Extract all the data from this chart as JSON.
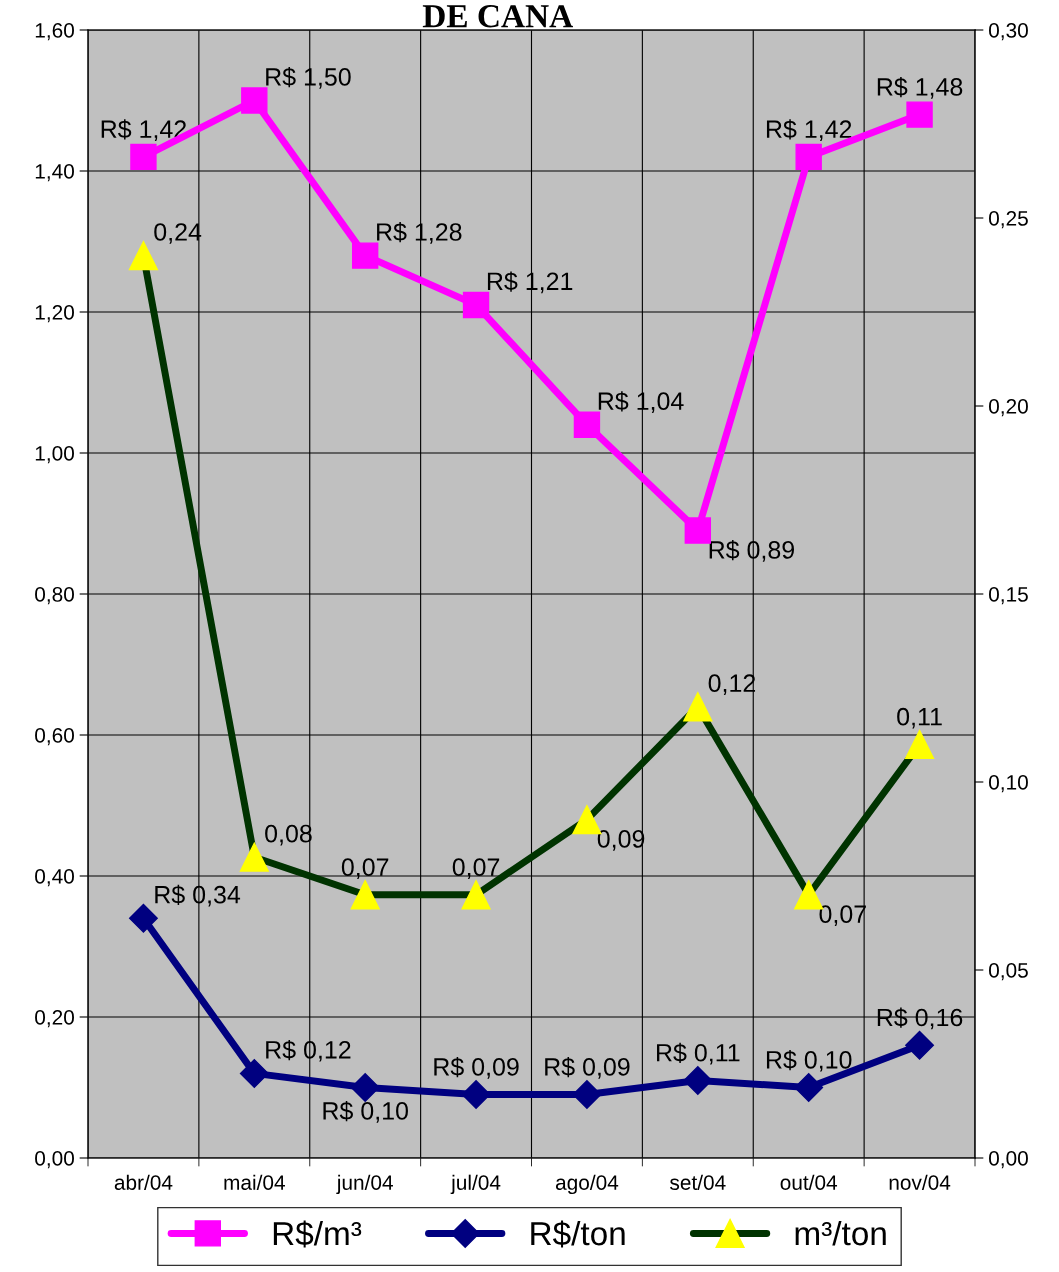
{
  "chart_data": {
    "type": "line",
    "title": "DE CANA",
    "categories": [
      "abr/04",
      "mai/04",
      "jun/04",
      "jul/04",
      "ago/04",
      "set/04",
      "out/04",
      "nov/04"
    ],
    "series": [
      {
        "name": "R$/m³",
        "color": "#ff00ff",
        "marker": "square",
        "values": [
          1.42,
          1.5,
          1.28,
          1.21,
          1.04,
          0.89,
          1.42,
          1.48
        ],
        "value_labels": [
          "R$ 1,42",
          "R$ 1,50",
          "R$ 1,28",
          "R$ 1,21",
          "R$ 1,04",
          "R$ 0,89",
          "R$ 1,42",
          "R$ 1,48"
        ]
      },
      {
        "name": "R$/ton",
        "color": "#000080",
        "marker": "diamond",
        "values": [
          0.34,
          0.12,
          0.1,
          0.09,
          0.09,
          0.11,
          0.1,
          0.16
        ],
        "value_labels": [
          "R$ 0,34",
          "R$ 0,12",
          "R$ 0,10",
          "R$ 0,09",
          "R$ 0,09",
          "R$ 0,11",
          "R$ 0,10",
          "R$ 0,16"
        ]
      },
      {
        "name": "m³/ton",
        "color": "#003300",
        "marker": "triangle",
        "axis": "y2",
        "values": [
          0.24,
          0.08,
          0.07,
          0.07,
          0.09,
          0.12,
          0.07,
          0.11
        ],
        "value_labels": [
          "0,24",
          "0,08",
          "0,07",
          "0,07",
          "0,09",
          "0,12",
          "0,07",
          "0,11"
        ]
      }
    ],
    "ylim": [
      0,
      1.6
    ],
    "yticks": [
      {
        "value": 0,
        "label": "0,00"
      },
      {
        "value": 0.2,
        "label": "0,20"
      },
      {
        "value": 0.4,
        "label": "0,40"
      },
      {
        "value": 0.6,
        "label": "0,60"
      },
      {
        "value": 0.8,
        "label": "0,80"
      },
      {
        "value": 1.0,
        "label": "1,00"
      },
      {
        "value": 1.2,
        "label": "1,20"
      },
      {
        "value": 1.4,
        "label": "1,40"
      },
      {
        "value": 1.6,
        "label": "1,60"
      }
    ],
    "y2lim": [
      0,
      0.3
    ],
    "y2ticks": [
      {
        "value": 0,
        "label": "0,00"
      },
      {
        "value": 0.05,
        "label": "0,05"
      },
      {
        "value": 0.1,
        "label": "0,10"
      },
      {
        "value": 0.15,
        "label": "0,15"
      },
      {
        "value": 0.2,
        "label": "0,20"
      },
      {
        "value": 0.25,
        "label": "0,25"
      },
      {
        "value": 0.3,
        "label": "0,30"
      }
    ],
    "grid": true,
    "legend": "bottom",
    "line_style": "solid"
  }
}
